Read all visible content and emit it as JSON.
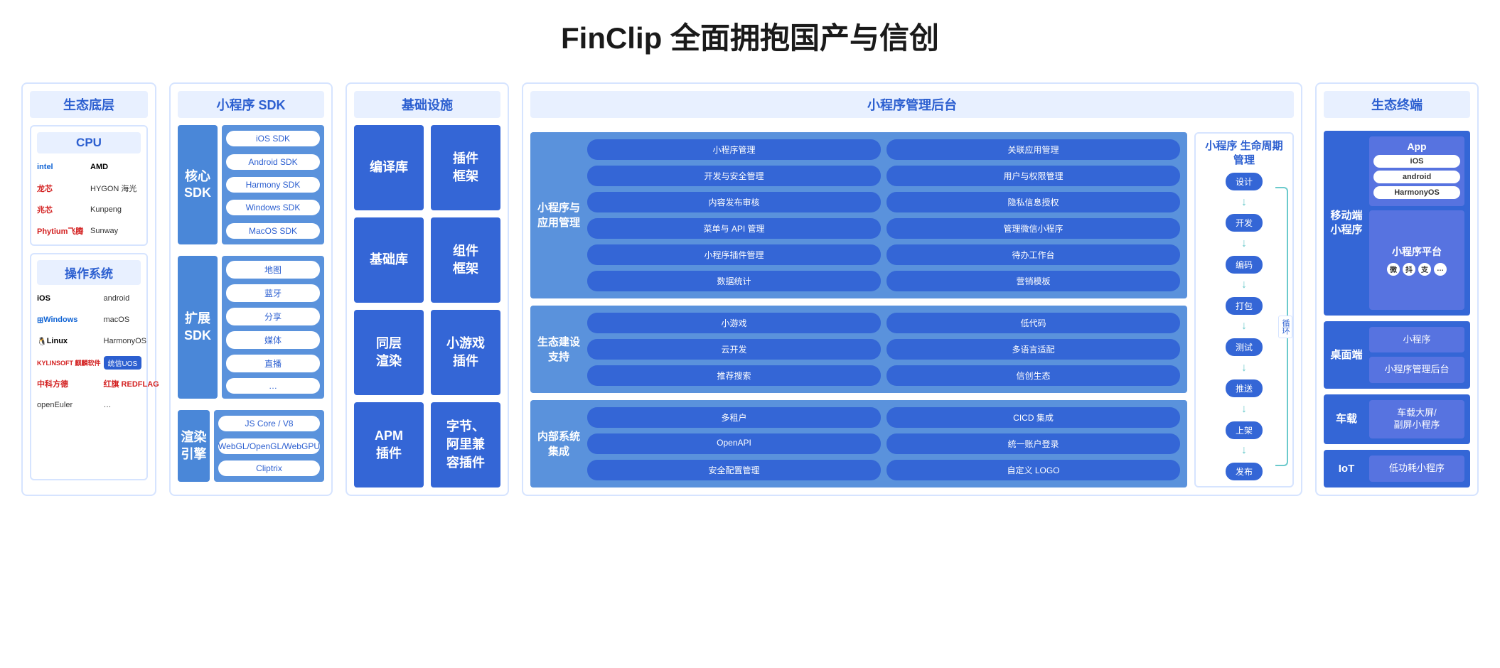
{
  "title": "FinClip 全面拥抱国产与信创",
  "colors": {
    "border": "#d6e4ff",
    "header_bg": "#e8f0ff",
    "header_text": "#2c5fd0",
    "mid_blue": "#5a92dc",
    "deep_blue": "#3466d6",
    "purple_blue": "#5773e0",
    "arrow": "#6bcacc"
  },
  "col1": {
    "header": "生态底层",
    "cpu": {
      "header": "CPU",
      "items": [
        "intel",
        "AMD",
        "龙芯",
        "HYGON 海光",
        "兆芯",
        "Kunpeng",
        "Phytium飞腾",
        "Sunway"
      ]
    },
    "os": {
      "header": "操作系统",
      "items": [
        "iOS",
        "android",
        "Windows",
        "macOS",
        "Linux",
        "HarmonyOS",
        "KYLINSOFT 麒麟软件",
        "统信UOS",
        "中科方德",
        "红旗 REDFLAG",
        "openEuler",
        "…"
      ]
    }
  },
  "col2": {
    "header": "小程序 SDK",
    "groups": [
      {
        "label": "核心\nSDK",
        "items": [
          "iOS SDK",
          "Android SDK",
          "Harmony SDK",
          "Windows SDK",
          "MacOS SDK"
        ]
      },
      {
        "label": "扩展\nSDK",
        "items": [
          "地图",
          "蓝牙",
          "分享",
          "媒体",
          "直播",
          "…"
        ]
      },
      {
        "label": "渲染\n引擎",
        "items": [
          "JS Core / V8",
          "WebGL/OpenGL/WebGPU",
          "Cliptrix"
        ]
      }
    ]
  },
  "col3": {
    "header": "基础设施",
    "cells": [
      "编译库",
      "插件\n框架",
      "基础库",
      "组件\n框架",
      "同层\n渲染",
      "小游戏\n插件",
      "APM\n插件",
      "字节、\n阿里兼\n容插件"
    ]
  },
  "col4": {
    "header": "小程序管理后台",
    "sections": [
      {
        "label": "小程序与\n应用管理",
        "items": [
          "小程序管理",
          "关联应用管理",
          "开发与安全管理",
          "用户与权限管理",
          "内容发布审核",
          "隐私信息授权",
          "菜单与 API 管理",
          "管理微信小程序",
          "小程序插件管理",
          "待办工作台",
          "数据统计",
          "营销模板"
        ]
      },
      {
        "label": "生态建设\n支持",
        "items": [
          "小游戏",
          "低代码",
          "云开发",
          "多语言适配",
          "推荐搜索",
          "信创生态"
        ]
      },
      {
        "label": "内部系统\n集成",
        "items": [
          "多租户",
          "CICD 集成",
          "OpenAPI",
          "统一账户登录",
          "安全配置管理",
          "自定义 LOGO"
        ]
      }
    ],
    "lifecycle": {
      "header": "小程序\n生命周期管理",
      "steps": [
        "设计",
        "开发",
        "编码",
        "打包",
        "测试",
        "推送",
        "上架",
        "发布"
      ],
      "loop_label": "循环"
    }
  },
  "col5": {
    "header": "生态终端",
    "mobile": {
      "label": "移动端\n小程序",
      "app": {
        "header": "App",
        "items": [
          "iOS",
          "android",
          "HarmonyOS"
        ]
      },
      "platform": {
        "title": "小程序平台",
        "icons": [
          "微",
          "抖",
          "支",
          "…"
        ]
      }
    },
    "rows": [
      {
        "label": "桌面端",
        "items": [
          "小程序",
          "小程序管理后台"
        ]
      },
      {
        "label": "车载",
        "items": [
          "车载大屏/\n副屏小程序"
        ]
      },
      {
        "label": "IoT",
        "items": [
          "低功耗小程序"
        ]
      }
    ]
  }
}
